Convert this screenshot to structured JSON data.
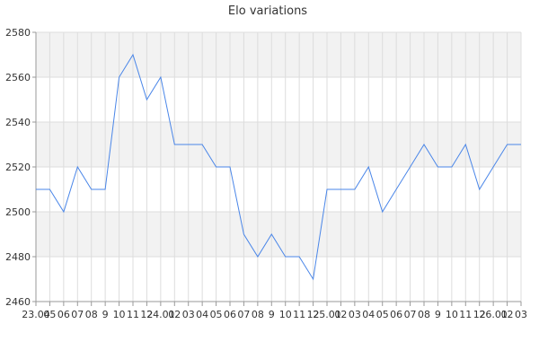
{
  "chart_data": {
    "type": "line",
    "title": "Elo variations",
    "xlabel": "",
    "ylabel": "",
    "ylim": [
      2460,
      2580
    ],
    "y_ticks": [
      2460,
      2480,
      2500,
      2520,
      2540,
      2560,
      2580
    ],
    "grid": true,
    "x_tick_labels": [
      "23.04",
      "05",
      "06",
      "07",
      "08",
      "9",
      "10",
      "11",
      "12",
      "24.01",
      "02",
      "03",
      "04",
      "05",
      "06",
      "07",
      "08",
      "9",
      "10",
      "11",
      "12",
      "25.01",
      "02",
      "03",
      "04",
      "05",
      "06",
      "07",
      "08",
      "9",
      "10",
      "11",
      "12",
      "26.01",
      "02",
      "03"
    ],
    "series": [
      {
        "values": [
          2510,
          2510,
          2500,
          2520,
          2510,
          2510,
          2560,
          2570,
          2550,
          2560,
          2530,
          2530,
          2530,
          2520,
          2520,
          2490,
          2480,
          2490,
          2480,
          2480,
          2470,
          2510,
          2510,
          2510,
          2520,
          2500,
          2510,
          2520,
          2530,
          2520,
          2520,
          2530,
          2510,
          2520,
          2530,
          2530
        ],
        "color": "#4a86e8"
      }
    ],
    "colors": {
      "band": "#f2f2f2",
      "grid": "#dddddd",
      "axis": "#999999"
    }
  }
}
